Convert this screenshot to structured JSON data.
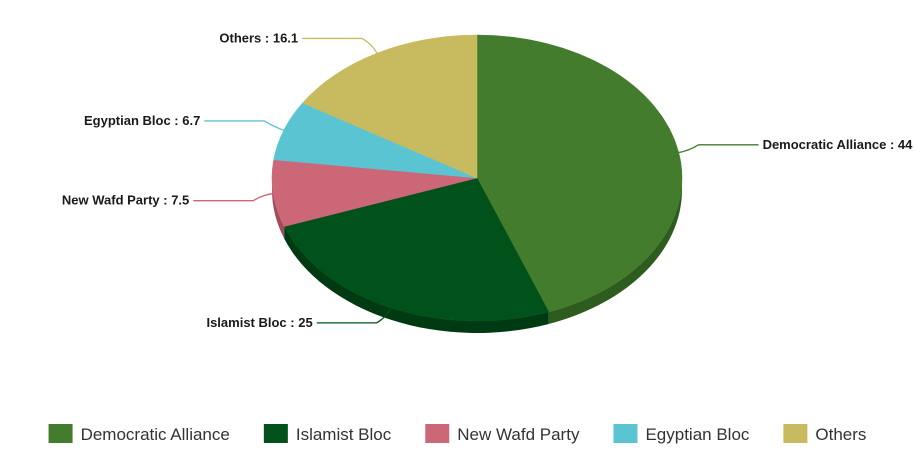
{
  "chart_data": {
    "type": "pie",
    "style": "3d",
    "categories": [
      "Democratic Alliance",
      "Islamist Bloc",
      "New Wafd Party",
      "Egyptian Bloc",
      "Others"
    ],
    "values": [
      44,
      25,
      7.5,
      6.7,
      16.1
    ],
    "colors": [
      "#437c2c",
      "#00521a",
      "#cc6778",
      "#5bc4d2",
      "#c8bb5f"
    ],
    "side_colors": [
      "#2e5c1e",
      "#003a12",
      "#a44b5a",
      "#3f9aa6",
      "#a39748"
    ],
    "labels": [
      "Democratic Alliance : 44",
      "Islamist Bloc : 25",
      "New Wafd Party : 7.5",
      "Egyptian Bloc : 6.7",
      "Others : 16.1"
    ],
    "legend": {
      "position": "bottom",
      "items": [
        "Democratic Alliance",
        "Islamist Bloc",
        "New Wafd Party",
        "Egyptian Bloc",
        "Others"
      ]
    }
  }
}
